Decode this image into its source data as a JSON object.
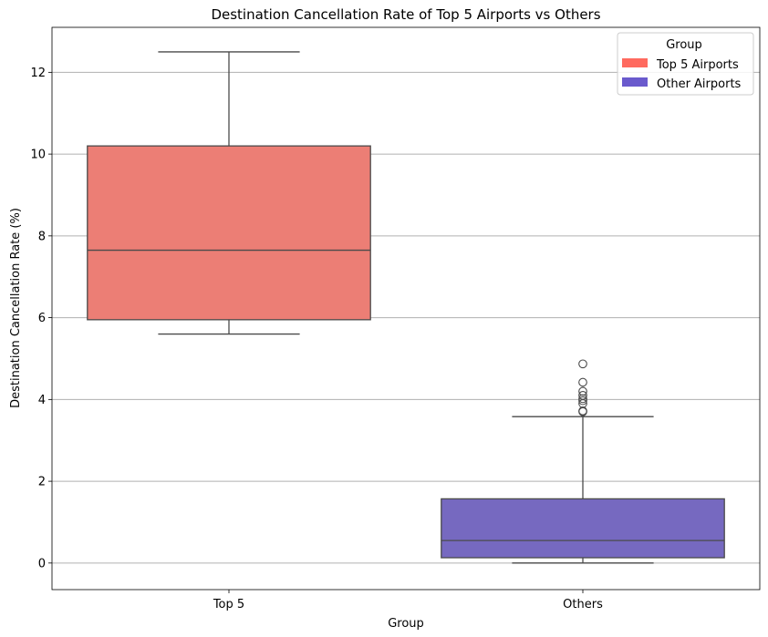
{
  "chart_data": {
    "type": "box",
    "title": "Destination Cancellation Rate of Top 5 Airports vs Others",
    "xlabel": "Group",
    "ylabel": "Destination Cancellation Rate (%)",
    "categories": [
      "Top 5",
      "Others"
    ],
    "ylim": [
      -0.65,
      13.1
    ],
    "yticks": [
      0,
      2,
      4,
      6,
      8,
      10,
      12
    ],
    "grid": "horizontal",
    "legend": {
      "title": "Group",
      "placement": "top-right",
      "entries": [
        {
          "label": "Top 5 Airports",
          "color": "#ff6a5f"
        },
        {
          "label": "Other Airports",
          "color": "#6a5acd"
        }
      ]
    },
    "boxes": [
      {
        "category": "Top 5",
        "whisker_low": 5.6,
        "q1": 5.95,
        "median": 7.65,
        "q3": 10.2,
        "whisker_high": 12.5,
        "outliers": [],
        "color": "#ec7e75"
      },
      {
        "category": "Others",
        "whisker_low": 0.0,
        "q1": 0.13,
        "median": 0.55,
        "q3": 1.57,
        "whisker_high": 3.58,
        "outliers": [
          3.7,
          3.72,
          3.9,
          3.97,
          4.02,
          4.1,
          4.2,
          4.42,
          4.87
        ],
        "color": "#7669c0"
      }
    ]
  }
}
